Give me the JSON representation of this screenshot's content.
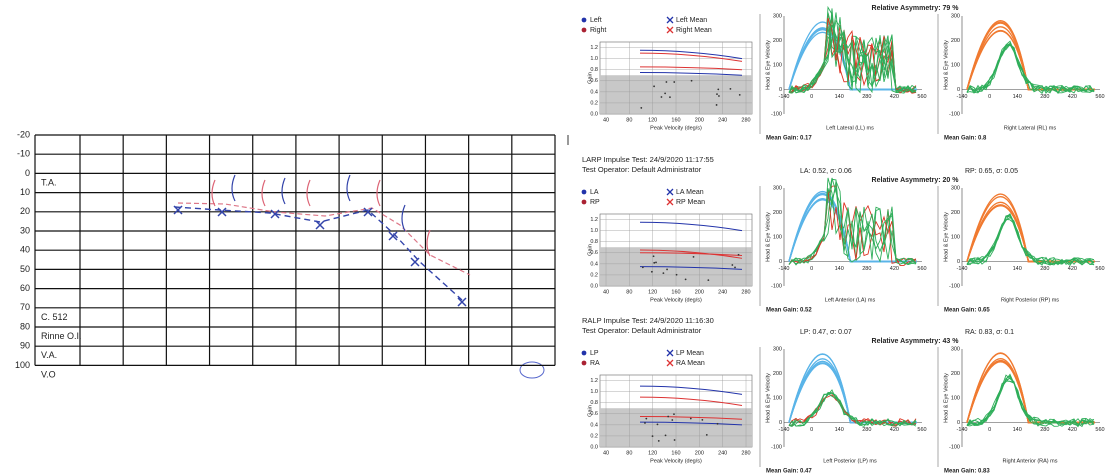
{
  "audiogram": {
    "y_ticks": [
      -20,
      -10,
      0,
      10,
      20,
      30,
      40,
      50,
      60,
      70,
      80,
      90,
      100
    ],
    "row_labels": [
      "T.A.",
      "C. 512",
      "Rinne O.I.",
      "V.A.",
      "V.O"
    ]
  },
  "vhit": {
    "gain_axis_label": "Gain",
    "velocity_axis_label": "Peak Velocity (deg/s)",
    "trace_axis_label": "Head & Eye Velocity",
    "gain_ticks": [
      "0.0",
      "0.2",
      "0.4",
      "0.6",
      "0.8",
      "1.0",
      "1.2"
    ],
    "velocity_ticks": [
      40,
      80,
      120,
      160,
      200,
      240,
      280
    ],
    "trace_y_ticks": [
      300,
      200,
      100,
      0,
      -100
    ],
    "trace_x_ticks": [
      -140,
      0,
      140,
      280,
      420,
      560
    ],
    "panels": [
      {
        "asymmetry": "Relative Asymmetry: 79 %",
        "legend": [
          "Left",
          "Right",
          "Left Mean",
          "Right Mean"
        ],
        "left_trace_label": "Left Lateral (LL) ms",
        "right_trace_label": "Right Lateral (RL) ms",
        "left_mean_gain": "Mean Gain: 0.17",
        "right_mean_gain": "Mean Gain: 0.8"
      },
      {
        "title": "LARP Impulse Test: 24/9/2020 11:17:55",
        "operator": "Test Operator: Default Administrator",
        "left_stat": "LA: 0.52, σ: 0.06",
        "right_stat": "RP: 0.65, σ: 0.05",
        "asymmetry": "Relative Asymmetry: 20 %",
        "legend": [
          "LA",
          "RP",
          "LA Mean",
          "RP Mean"
        ],
        "left_trace_label": "Left Anterior (LA) ms",
        "right_trace_label": "Right Posterior (RP) ms",
        "left_mean_gain": "Mean Gain: 0.52",
        "right_mean_gain": "Mean Gain: 0.65"
      },
      {
        "title": "RALP Impulse Test: 24/9/2020 11:16:30",
        "operator": "Test Operator: Default Administrator",
        "left_stat": "LP: 0.47, σ: 0.07",
        "right_stat": "RA: 0.83, σ: 0.1",
        "asymmetry": "Relative Asymmetry: 43 %",
        "legend": [
          "LP",
          "RA",
          "LP Mean",
          "RA Mean"
        ],
        "left_trace_label": "Left Posterior (LP) ms",
        "right_trace_label": "Right Anterior (RA) ms",
        "left_mean_gain": "Mean Gain: 0.47",
        "right_mean_gain": "Mean Gain: 0.83"
      }
    ]
  }
}
